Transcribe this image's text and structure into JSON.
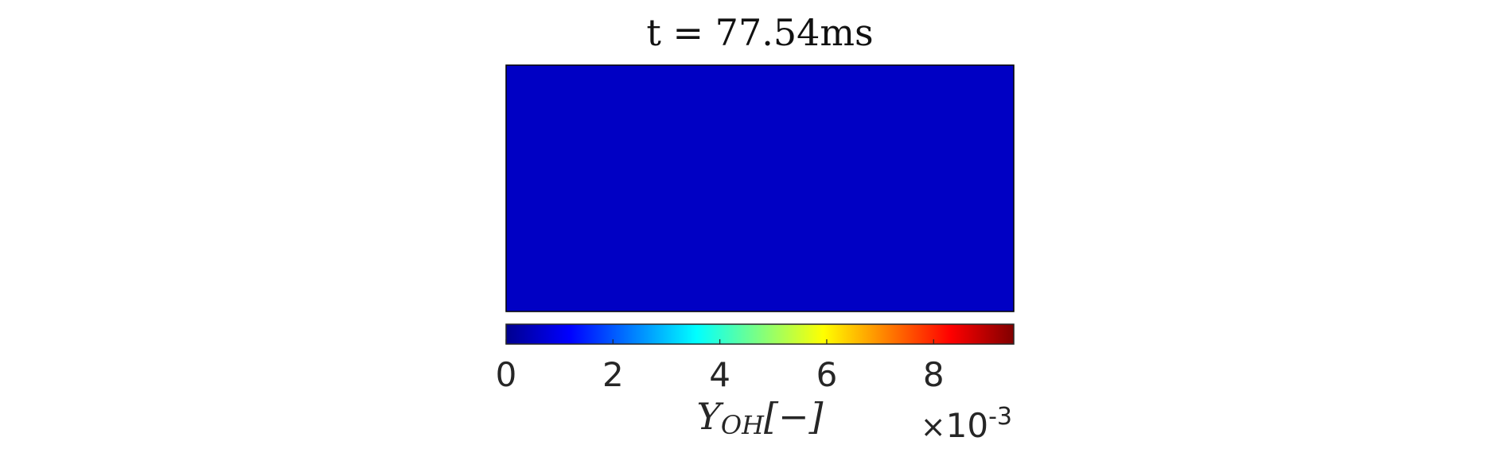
{
  "chart_data": {
    "type": "heatmap",
    "title": "t = 77.54ms",
    "field_value": 0.0008,
    "field_color": "#0000C4",
    "colorbar": {
      "colormap": "jet",
      "range": [
        0,
        0.0095
      ],
      "ticks": [
        0,
        2,
        4,
        6,
        8
      ],
      "tick_labels": [
        "0",
        "2",
        "4",
        "6",
        "8"
      ],
      "tick_scale": 0.001,
      "label_main": "Y",
      "label_sub": "OH",
      "label_unit": "[−]",
      "exponent_times": "×",
      "exponent_base": "10",
      "exponent_power": "-3"
    }
  }
}
